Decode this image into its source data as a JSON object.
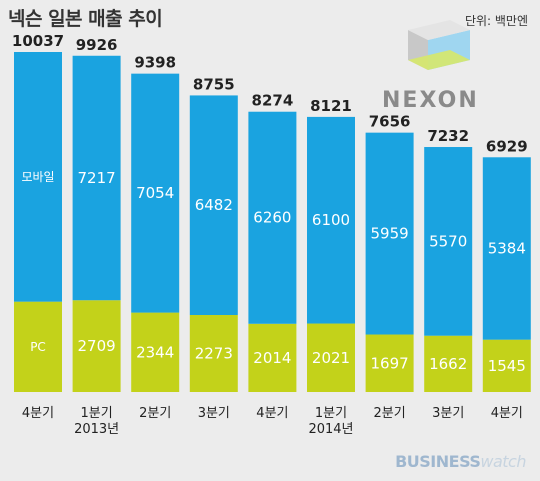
{
  "title": "넥슨 일본 매출 추이",
  "unit": "단위: 백만엔",
  "brand": {
    "nexon": "NEXON",
    "watermark_bold": "BUSINESS",
    "watermark_light": "watch"
  },
  "colors": {
    "mobile": "#1aa3e0",
    "pc": "#c3d21a",
    "background": "#ececec"
  },
  "chart_data": {
    "type": "bar",
    "stacked": true,
    "categories": [
      "4분기",
      "1분기\n2013년",
      "2분기",
      "3분기",
      "4분기",
      "1분기\n2014년",
      "2분기",
      "3분기",
      "4분기"
    ],
    "category_lines": [
      [
        "4분기"
      ],
      [
        "1분기",
        "2013년"
      ],
      [
        "2분기"
      ],
      [
        "3분기"
      ],
      [
        "4분기"
      ],
      [
        "1분기",
        "2014년"
      ],
      [
        "2분기"
      ],
      [
        "3분기"
      ],
      [
        "4분기"
      ]
    ],
    "totals": [
      10037,
      9926,
      9398,
      8755,
      8274,
      8121,
      7656,
      7232,
      6929
    ],
    "series": [
      {
        "name": "PC",
        "values": [
          2667,
          2709,
          2344,
          2273,
          2014,
          2021,
          1697,
          1662,
          1545
        ]
      },
      {
        "name": "모바일",
        "values": [
          7370,
          7217,
          7054,
          6482,
          6260,
          6100,
          5959,
          5570,
          5384
        ]
      }
    ],
    "value_labels": {
      "PC": [
        "",
        "2709",
        "2344",
        "2273",
        "2014",
        "2021",
        "1697",
        "1662",
        "1545"
      ],
      "모바일": [
        "",
        "7217",
        "7054",
        "6482",
        "6260",
        "6100",
        "5959",
        "5570",
        "5384"
      ]
    },
    "series_labels_in_first_bar": [
      "모바일",
      "PC"
    ],
    "ylim": [
      0,
      10037
    ],
    "grid": false,
    "legend": "none"
  }
}
